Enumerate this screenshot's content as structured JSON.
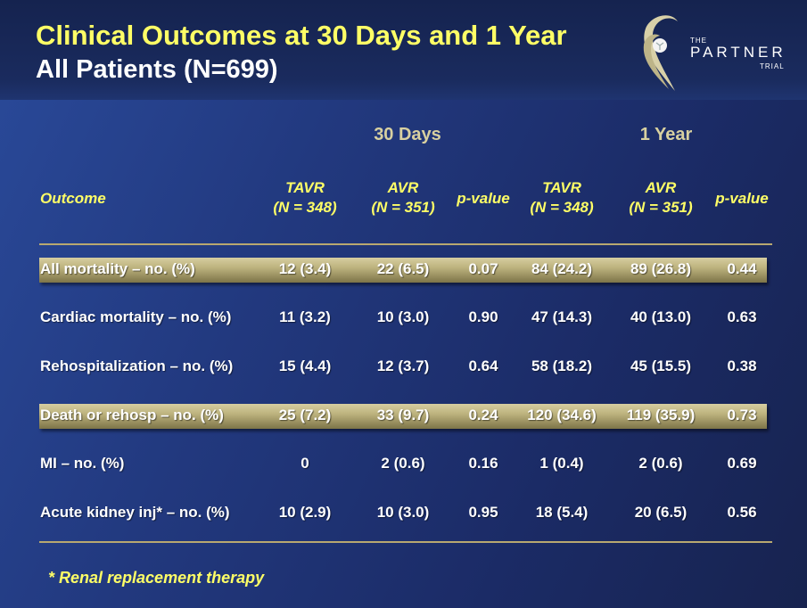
{
  "title": {
    "line1": "Clinical Outcomes at 30 Days and 1 Year",
    "line2": "All Patients (N=699)"
  },
  "logo": {
    "the": "THE",
    "name": "PARTNER",
    "trial": "TRIAL"
  },
  "table": {
    "groups": [
      "30 Days",
      "1 Year"
    ],
    "outcome_header": "Outcome",
    "columns": [
      {
        "l1": "TAVR",
        "l2": "(N = 348)"
      },
      {
        "l1": "AVR",
        "l2": "(N = 351)"
      },
      {
        "l1": "p-value",
        "l2": ""
      },
      {
        "l1": "TAVR",
        "l2": "(N = 348)"
      },
      {
        "l1": "AVR",
        "l2": "(N = 351)"
      },
      {
        "l1": "p-value",
        "l2": ""
      }
    ],
    "rows": [
      {
        "label": "All mortality  – no. (%)",
        "values": [
          "12 (3.4)",
          "22 (6.5)",
          "0.07",
          "84 (24.2)",
          "89 (26.8)",
          "0.44"
        ]
      },
      {
        "label": "Cardiac mortality  – no. (%)",
        "values": [
          "11 (3.2)",
          "10 (3.0)",
          "0.90",
          "47 (14.3)",
          "40 (13.0)",
          "0.63"
        ]
      },
      {
        "label": "Rehospitalization – no. (%)",
        "values": [
          "15 (4.4)",
          "12 (3.7)",
          "0.64",
          "58 (18.2)",
          "45 (15.5)",
          "0.38"
        ]
      },
      {
        "label": "Death or rehosp – no. (%)",
        "values": [
          "25 (7.2)",
          "33 (9.7)",
          "0.24",
          "120 (34.6)",
          "119 (35.9)",
          "0.73"
        ]
      },
      {
        "label": "MI – no. (%)",
        "values": [
          "0",
          "2 (0.6)",
          "0.16",
          "1 (0.4)",
          "2 (0.6)",
          "0.69"
        ]
      },
      {
        "label": "Acute kidney inj* – no. (%)",
        "values": [
          "10 (2.9)",
          "10 (3.0)",
          "0.95",
          "18 (5.4)",
          "20 (6.5)",
          "0.56"
        ]
      }
    ]
  },
  "footnote": "* Renal replacement therapy"
}
